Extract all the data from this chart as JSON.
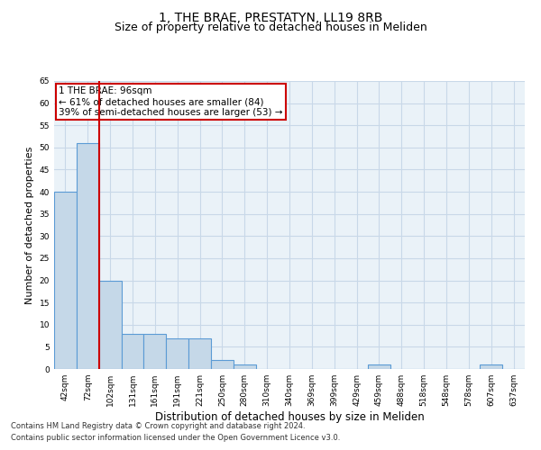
{
  "title": "1, THE BRAE, PRESTATYN, LL19 8RB",
  "subtitle": "Size of property relative to detached houses in Meliden",
  "xlabel": "Distribution of detached houses by size in Meliden",
  "ylabel": "Number of detached properties",
  "categories": [
    "42sqm",
    "72sqm",
    "102sqm",
    "131sqm",
    "161sqm",
    "191sqm",
    "221sqm",
    "250sqm",
    "280sqm",
    "310sqm",
    "340sqm",
    "369sqm",
    "399sqm",
    "429sqm",
    "459sqm",
    "488sqm",
    "518sqm",
    "548sqm",
    "578sqm",
    "607sqm",
    "637sqm"
  ],
  "values": [
    40,
    51,
    20,
    8,
    8,
    7,
    7,
    2,
    1,
    0,
    0,
    0,
    0,
    0,
    1,
    0,
    0,
    0,
    0,
    1,
    0
  ],
  "bar_color": "#c5d8e8",
  "bar_edge_color": "#5b9bd5",
  "bar_edge_width": 0.8,
  "red_line_color": "#cc0000",
  "annotation_text": "1 THE BRAE: 96sqm\n← 61% of detached houses are smaller (84)\n39% of semi-detached houses are larger (53) →",
  "annotation_box_color": "#ffffff",
  "annotation_box_edge": "#cc0000",
  "ylim": [
    0,
    65
  ],
  "yticks": [
    0,
    5,
    10,
    15,
    20,
    25,
    30,
    35,
    40,
    45,
    50,
    55,
    60,
    65
  ],
  "grid_color": "#c8d8e8",
  "background_color": "#eaf2f8",
  "footer_line1": "Contains HM Land Registry data © Crown copyright and database right 2024.",
  "footer_line2": "Contains public sector information licensed under the Open Government Licence v3.0.",
  "title_fontsize": 10,
  "subtitle_fontsize": 9,
  "tick_fontsize": 6.5,
  "ylabel_fontsize": 8,
  "xlabel_fontsize": 8.5,
  "annotation_fontsize": 7.5,
  "footer_fontsize": 6
}
